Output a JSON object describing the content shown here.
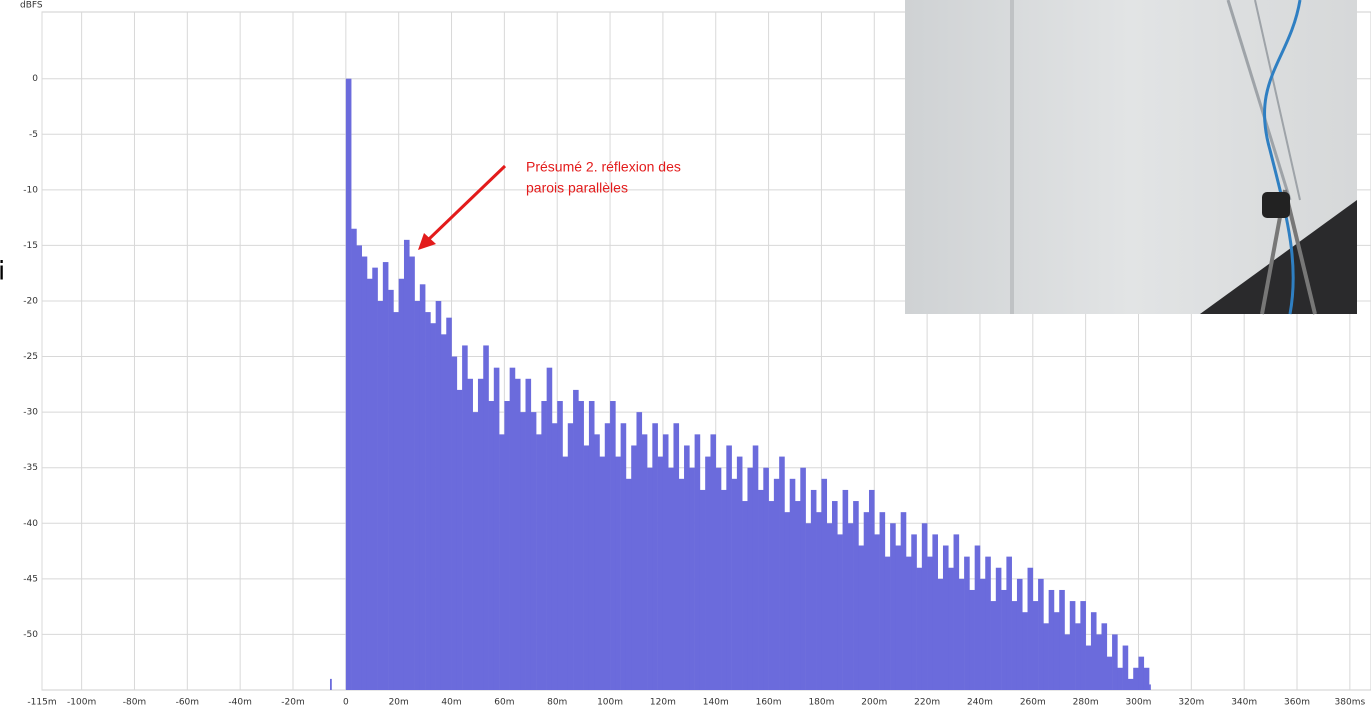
{
  "chart_data": {
    "type": "bar",
    "y_label": "dBFS",
    "side_text": "i",
    "annotation": [
      "Présumé 2. réflexion des",
      "parois parallèles"
    ],
    "color": "#6b6bdc",
    "grid": true,
    "xlim": [
      -115,
      388
    ],
    "ylim": [
      -55,
      6
    ],
    "xticks": [
      {
        "value": -115,
        "label": "-115m"
      },
      {
        "value": -100,
        "label": "-100m"
      },
      {
        "value": -80,
        "label": "-80m"
      },
      {
        "value": -60,
        "label": "-60m"
      },
      {
        "value": -40,
        "label": "-40m"
      },
      {
        "value": -20,
        "label": "-20m"
      },
      0,
      {
        "value": 20,
        "label": "20m"
      },
      {
        "value": 40,
        "label": "40m"
      },
      {
        "value": 60,
        "label": "60m"
      },
      {
        "value": 80,
        "label": "80m"
      },
      {
        "value": 100,
        "label": "100m"
      },
      {
        "value": 120,
        "label": "120m"
      },
      {
        "value": 140,
        "label": "140m"
      },
      {
        "value": 160,
        "label": "160m"
      },
      {
        "value": 180,
        "label": "180m"
      },
      {
        "value": 200,
        "label": "200m"
      },
      {
        "value": 220,
        "label": "220m"
      },
      {
        "value": 240,
        "label": "240m"
      },
      {
        "value": 260,
        "label": "260m"
      },
      {
        "value": 280,
        "label": "280m"
      },
      {
        "value": 300,
        "label": "300m"
      },
      {
        "value": 320,
        "label": "320m"
      },
      {
        "value": 340,
        "label": "340m"
      },
      {
        "value": 360,
        "label": "360m"
      },
      {
        "value": 380,
        "label": "380ms"
      }
    ],
    "yticks": [
      0,
      -5,
      -10,
      -15,
      -20,
      -25,
      -30,
      -35,
      -40,
      -45,
      -50
    ],
    "x": [
      -6,
      0,
      2,
      4,
      6,
      8,
      10,
      12,
      14,
      16,
      18,
      20,
      22,
      24,
      26,
      28,
      30,
      32,
      34,
      36,
      38,
      40,
      42,
      44,
      46,
      48,
      50,
      52,
      54,
      56,
      58,
      60,
      62,
      64,
      66,
      68,
      70,
      72,
      74,
      76,
      78,
      80,
      82,
      84,
      86,
      88,
      90,
      92,
      94,
      96,
      98,
      100,
      102,
      104,
      106,
      108,
      110,
      112,
      114,
      116,
      118,
      120,
      122,
      124,
      126,
      128,
      130,
      132,
      134,
      136,
      138,
      140,
      142,
      144,
      146,
      148,
      150,
      152,
      154,
      156,
      158,
      160,
      162,
      164,
      166,
      168,
      170,
      172,
      174,
      176,
      178,
      180,
      182,
      184,
      186,
      188,
      190,
      192,
      194,
      196,
      198,
      200,
      202,
      204,
      206,
      208,
      210,
      212,
      214,
      216,
      218,
      220,
      222,
      224,
      226,
      228,
      230,
      232,
      234,
      236,
      238,
      240,
      242,
      244,
      246,
      248,
      250,
      252,
      254,
      256,
      258,
      260,
      262,
      264,
      266,
      268,
      270,
      272,
      274,
      276,
      278,
      280,
      282,
      284,
      286,
      288,
      290,
      292,
      294,
      296,
      298,
      300,
      302,
      304
    ],
    "values": [
      -54,
      0,
      -13.5,
      -15,
      -16,
      -18,
      -17,
      -20,
      -16.5,
      -19,
      -21,
      -18,
      -14.5,
      -16,
      -20,
      -18.5,
      -21,
      -22,
      -20,
      -23,
      -21.5,
      -25,
      -28,
      -24,
      -27,
      -30,
      -27,
      -24,
      -29,
      -26,
      -32,
      -29,
      -26,
      -27,
      -30,
      -27,
      -30,
      -32,
      -29,
      -26,
      -31,
      -29,
      -34,
      -31,
      -28,
      -29,
      -33,
      -29,
      -32,
      -34,
      -31,
      -29,
      -34,
      -31,
      -36,
      -33,
      -30,
      -32,
      -35,
      -31,
      -34,
      -32,
      -35,
      -31,
      -36,
      -33,
      -35,
      -32,
      -37,
      -34,
      -32,
      -35,
      -37,
      -33,
      -36,
      -34,
      -38,
      -35,
      -33,
      -37,
      -35,
      -38,
      -36,
      -34,
      -39,
      -36,
      -38,
      -35,
      -40,
      -37,
      -39,
      -36,
      -40,
      -38,
      -41,
      -37,
      -40,
      -38,
      -42,
      -39,
      -37,
      -41,
      -39,
      -43,
      -40,
      -42,
      -39,
      -43,
      -41,
      -44,
      -40,
      -43,
      -41,
      -45,
      -42,
      -44,
      -41,
      -45,
      -43,
      -46,
      -42,
      -45,
      -43,
      -47,
      -44,
      -46,
      -43,
      -47,
      -45,
      -48,
      -44,
      -47,
      -45,
      -49,
      -46,
      -48,
      -46,
      -50,
      -47,
      -49,
      -47,
      -51,
      -48,
      -50,
      -49,
      -52,
      -50,
      -53,
      -51,
      -54,
      -53,
      -52,
      -53,
      -54.5
    ]
  }
}
